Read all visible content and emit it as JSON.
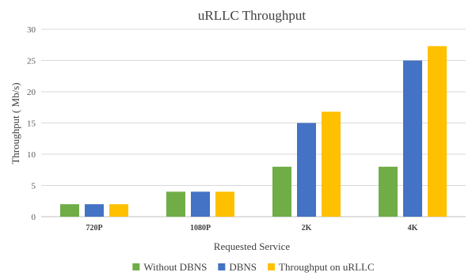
{
  "chart_data": {
    "type": "bar",
    "title": "uRLLC Throughput",
    "xlabel": "Requested Service",
    "ylabel": "Throughput ( Mb/s)",
    "categories": [
      "720P",
      "1080P",
      "2K",
      "4K"
    ],
    "ylim": [
      0,
      30
    ],
    "yticks": [
      0,
      5,
      10,
      15,
      20,
      25,
      30
    ],
    "grid": true,
    "legend_position": "bottom",
    "series": [
      {
        "name": "Without DBNS",
        "color": "#70ad47",
        "values": [
          2,
          4,
          8,
          8
        ]
      },
      {
        "name": "DBNS",
        "color": "#4472c4",
        "values": [
          2,
          4,
          15,
          25
        ]
      },
      {
        "name": "Throughput on uRLLC",
        "color": "#ffc000",
        "values": [
          2,
          4,
          16.8,
          27.3
        ]
      }
    ]
  }
}
